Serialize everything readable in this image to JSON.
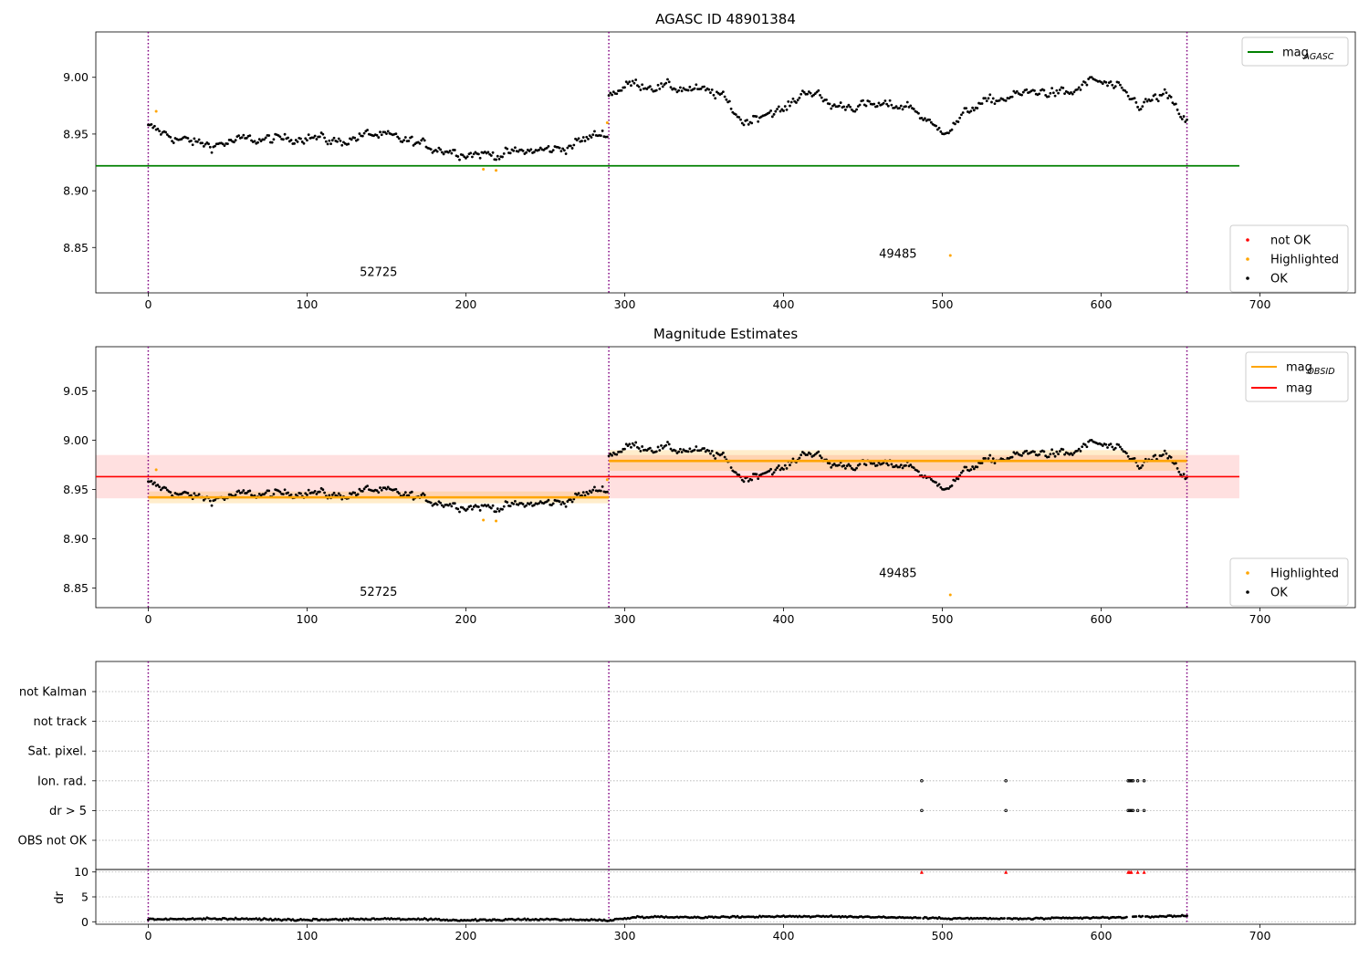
{
  "chart_data": [
    {
      "type": "scatter",
      "title": "AGASC ID 48901384",
      "xlabel": "",
      "ylabel": "",
      "xlim": [
        -33,
        760
      ],
      "ylim": [
        8.81,
        9.04
      ],
      "xticks": [
        "0",
        "100",
        "200",
        "300",
        "400",
        "500",
        "600",
        "700"
      ],
      "xtick_values": [
        0,
        100,
        200,
        300,
        400,
        500,
        600,
        700
      ],
      "yticks": [
        "8.85",
        "8.90",
        "8.95",
        "9.00"
      ],
      "ytick_values": [
        8.85,
        8.9,
        8.95,
        9.0
      ],
      "obsid_boundaries": [
        0,
        290,
        654
      ],
      "obsid_labels": [
        {
          "text": "52725",
          "x": 145,
          "y": 8.825
        },
        {
          "text": "49485",
          "x": 472,
          "y": 8.841
        }
      ],
      "reference_line": {
        "name": "mag_AGASC",
        "y": 8.922,
        "x": [
          -33,
          687
        ],
        "color": "#008000"
      },
      "legend_lines": [
        {
          "label": "mag",
          "sub": "AGASC",
          "color": "#008000"
        }
      ],
      "legend_points": [
        {
          "label": "not OK",
          "color": "#ff0000"
        },
        {
          "label": "Highlighted",
          "color": "#ffa500"
        },
        {
          "label": "OK",
          "color": "#000000"
        }
      ],
      "segments": [
        {
          "x_start": 0,
          "x_end": 290,
          "levels": [
            [
              0,
              8.956
            ],
            [
              20,
              8.945
            ],
            [
              40,
              8.94
            ],
            [
              60,
              8.945
            ],
            [
              80,
              8.945
            ],
            [
              100,
              8.948
            ],
            [
              120,
              8.943
            ],
            [
              140,
              8.95
            ],
            [
              160,
              8.945
            ],
            [
              180,
              8.938
            ],
            [
              200,
              8.933
            ],
            [
              220,
              8.932
            ],
            [
              240,
              8.935
            ],
            [
              260,
              8.937
            ],
            [
              280,
              8.948
            ],
            [
              290,
              8.952
            ]
          ]
        },
        {
          "x_start": 290,
          "x_end": 654,
          "levels": [
            [
              290,
              8.985
            ],
            [
              305,
              8.995
            ],
            [
              320,
              8.992
            ],
            [
              340,
              8.99
            ],
            [
              360,
              8.985
            ],
            [
              375,
              8.96
            ],
            [
              390,
              8.97
            ],
            [
              400,
              8.97
            ],
            [
              415,
              8.99
            ],
            [
              430,
              8.975
            ],
            [
              445,
              8.975
            ],
            [
              465,
              8.975
            ],
            [
              480,
              8.975
            ],
            [
              495,
              8.955
            ],
            [
              505,
              8.955
            ],
            [
              520,
              8.975
            ],
            [
              540,
              8.982
            ],
            [
              560,
              8.988
            ],
            [
              580,
              8.985
            ],
            [
              595,
              8.998
            ],
            [
              610,
              8.99
            ],
            [
              625,
              8.975
            ],
            [
              640,
              8.985
            ],
            [
              654,
              8.96
            ]
          ]
        }
      ],
      "highlighted": [
        [
          5,
          8.97
        ],
        [
          211,
          8.919
        ],
        [
          219,
          8.918
        ],
        [
          289,
          8.96
        ],
        [
          505,
          8.843
        ]
      ]
    },
    {
      "type": "scatter",
      "title": "Magnitude Estimates",
      "xlabel": "",
      "ylabel": "",
      "xlim": [
        -33,
        760
      ],
      "ylim": [
        8.83,
        9.095
      ],
      "xticks": [
        "0",
        "100",
        "200",
        "300",
        "400",
        "500",
        "600",
        "700"
      ],
      "xtick_values": [
        0,
        100,
        200,
        300,
        400,
        500,
        600,
        700
      ],
      "yticks": [
        "8.85",
        "8.90",
        "8.95",
        "9.00",
        "9.05"
      ],
      "ytick_values": [
        8.85,
        8.9,
        8.95,
        9.0,
        9.05
      ],
      "obsid_boundaries": [
        0,
        290,
        654
      ],
      "obsid_labels": [
        {
          "text": "52725",
          "x": 145,
          "y": 8.842
        },
        {
          "text": "49485",
          "x": 472,
          "y": 8.861
        }
      ],
      "mag_line": {
        "name": "mag",
        "y": 8.963,
        "band": [
          8.941,
          8.985
        ],
        "x": [
          -33,
          687
        ],
        "color": "#ff0000"
      },
      "obsid_mags": [
        {
          "x": [
            0,
            290
          ],
          "y": 8.942,
          "band": [
            8.936,
            8.948
          ]
        },
        {
          "x": [
            290,
            654
          ],
          "y": 8.979,
          "band": [
            8.969,
            8.99
          ]
        }
      ],
      "legend_lines": [
        {
          "label": "mag",
          "sub": "OBSID",
          "color": "#ffa500"
        },
        {
          "label": "mag",
          "sub": "",
          "color": "#ff0000"
        }
      ],
      "legend_points": [
        {
          "label": "Highlighted",
          "color": "#ffa500"
        },
        {
          "label": "OK",
          "color": "#000000"
        }
      ],
      "highlighted": [
        [
          5,
          8.97
        ],
        [
          211,
          8.919
        ],
        [
          219,
          8.918
        ],
        [
          289,
          8.96
        ],
        [
          505,
          8.843
        ]
      ]
    },
    {
      "type": "scatter",
      "title": "",
      "xlabel": "",
      "ylabel": "",
      "xlim": [
        -33,
        760
      ],
      "xticks": [
        "0",
        "100",
        "200",
        "300",
        "400",
        "500",
        "600",
        "700"
      ],
      "xtick_values": [
        0,
        100,
        200,
        300,
        400,
        500,
        600,
        700
      ],
      "obsid_boundaries": [
        0,
        290,
        654
      ],
      "flag_rows": [
        "not Kalman",
        "not track",
        "Sat. pixel.",
        "Ion. rad.",
        "dr > 5",
        "OBS not OK"
      ],
      "flag_points": [
        {
          "row": "Ion. rad.",
          "x": [
            487,
            540,
            617,
            618,
            619,
            620,
            623,
            627
          ]
        },
        {
          "row": "dr > 5",
          "x": [
            487,
            540,
            617,
            618,
            619,
            620,
            623,
            627
          ]
        }
      ]
    },
    {
      "type": "scatter",
      "title": "",
      "xlabel": "",
      "ylabel": "dr",
      "xlim": [
        -33,
        760
      ],
      "ylim": [
        -0.5,
        10.5
      ],
      "yticks": [
        "0",
        "5",
        "10"
      ],
      "ytick_values": [
        0,
        5,
        10
      ],
      "obsid_boundaries": [
        0,
        290,
        654
      ],
      "dr_clipped": [
        487,
        540,
        617,
        618,
        619,
        623,
        627
      ],
      "dr_clip_value": 10,
      "dr_base": [
        [
          0,
          0.5
        ],
        [
          50,
          0.6
        ],
        [
          100,
          0.4
        ],
        [
          150,
          0.6
        ],
        [
          200,
          0.3
        ],
        [
          250,
          0.5
        ],
        [
          290,
          0.3
        ],
        [
          310,
          1.0
        ],
        [
          350,
          0.9
        ],
        [
          400,
          1.1
        ],
        [
          450,
          1.0
        ],
        [
          500,
          0.7
        ],
        [
          550,
          0.6
        ],
        [
          600,
          0.8
        ],
        [
          654,
          1.2
        ]
      ]
    }
  ]
}
